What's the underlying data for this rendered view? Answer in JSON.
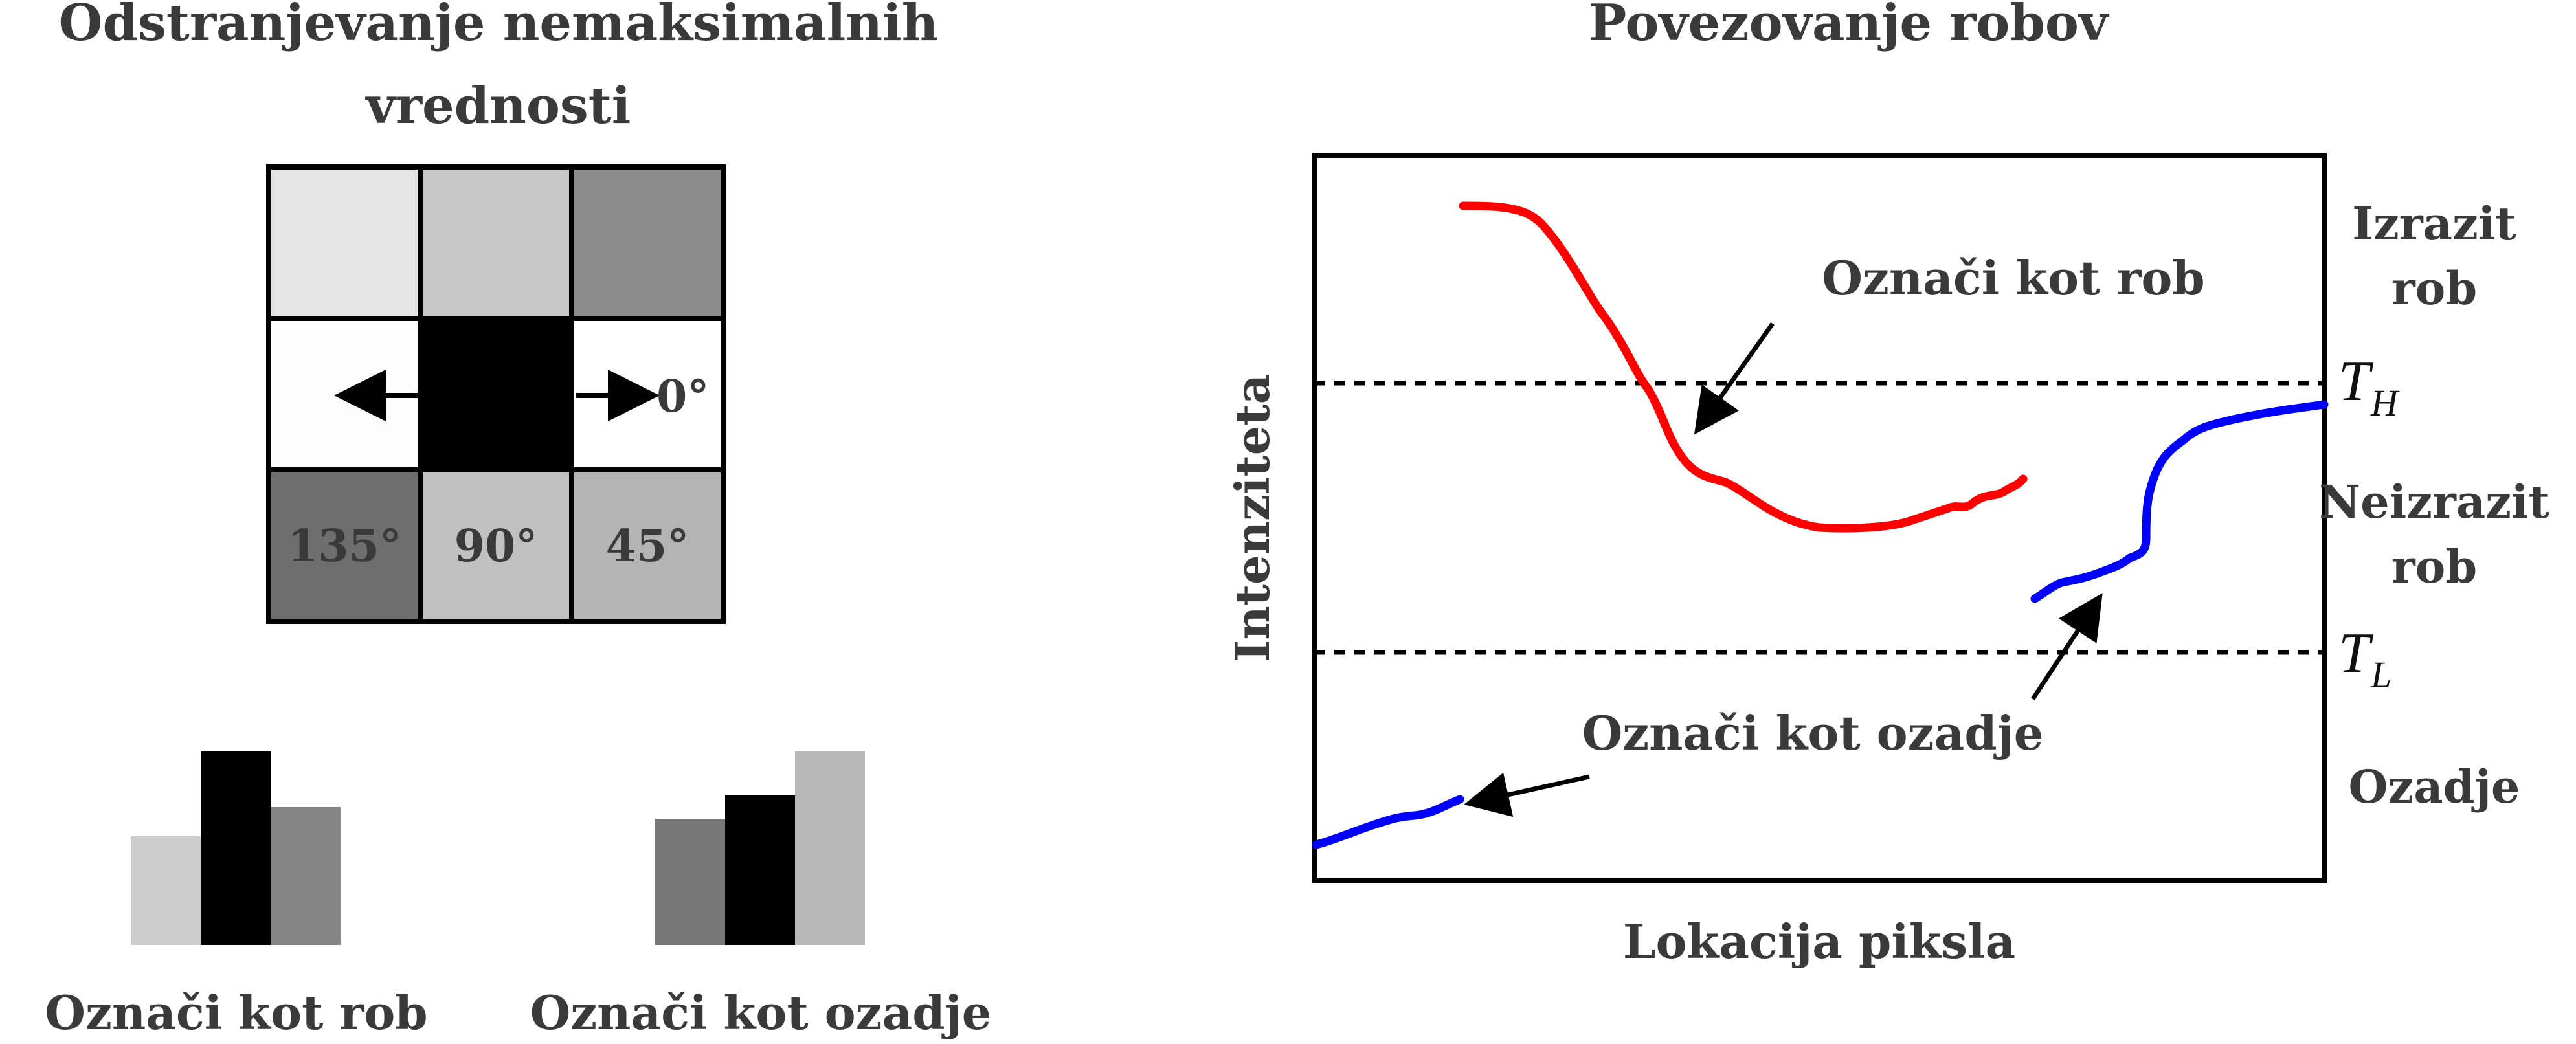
{
  "left_panel": {
    "title_line1": "Odstranjevanje nemaksimalnih",
    "title_line2": "vrednosti",
    "grid": {
      "cells": [
        {
          "row": 0,
          "col": 0,
          "gray": "#e6e6e6",
          "label": ""
        },
        {
          "row": 0,
          "col": 1,
          "gray": "#c8c8c8",
          "label": ""
        },
        {
          "row": 0,
          "col": 2,
          "gray": "#8c8c8c",
          "label": ""
        },
        {
          "row": 1,
          "col": 0,
          "gray": "#fcfcfc",
          "label": ""
        },
        {
          "row": 1,
          "col": 1,
          "gray": "#000000",
          "label": ""
        },
        {
          "row": 1,
          "col": 2,
          "gray": "#ffffff",
          "label": ""
        },
        {
          "row": 2,
          "col": 0,
          "gray": "#6e6e6e",
          "label": "135°"
        },
        {
          "row": 2,
          "col": 1,
          "gray": "#c0c0c0",
          "label": "90°"
        },
        {
          "row": 2,
          "col": 2,
          "gray": "#b4b4b4",
          "label": "45°"
        }
      ],
      "right_arrow_label": "0°"
    },
    "bar_groups": [
      {
        "label": "Označi kot rob",
        "bars": [
          {
            "value": 0.56,
            "color": "#cdcdcd"
          },
          {
            "value": 1.0,
            "color": "#000000"
          },
          {
            "value": 0.71,
            "color": "#858585"
          }
        ]
      },
      {
        "label": "Označi kot ozadje",
        "bars": [
          {
            "value": 0.65,
            "color": "#777777"
          },
          {
            "value": 0.77,
            "color": "#000000"
          },
          {
            "value": 1.0,
            "color": "#b8b8b8"
          }
        ]
      }
    ]
  },
  "right_panel": {
    "title": "Povezovanje robov",
    "ylabel": "Intenziteta",
    "xlabel": "Lokacija piksla",
    "thresholds": [
      {
        "symbol": "T",
        "subscript": "H"
      },
      {
        "symbol": "T",
        "subscript": "L"
      }
    ],
    "region_labels": {
      "strong_line1": "Izrazit",
      "strong_line2": "rob",
      "weak_line1": "Neizrazit",
      "weak_line2": "rob",
      "background": "Ozadje"
    },
    "annotations": {
      "edge": "Označi kot rob",
      "background": "Označi kot ozadje"
    },
    "colors": {
      "edge_curve": "#ff0000",
      "weak_curve": "#0000ff"
    }
  }
}
